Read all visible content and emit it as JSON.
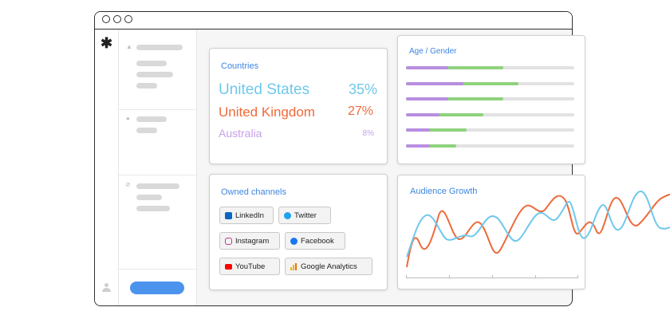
{
  "sidebar": {
    "logo": "✱"
  },
  "countries": {
    "title": "Countries",
    "rows": [
      {
        "name": "United States",
        "pct": "35%",
        "color": "#6fc8ec"
      },
      {
        "name": "United Kingdom",
        "pct": "27%",
        "color": "#ee6a3a"
      },
      {
        "name": "Australia",
        "pct": "8%",
        "color": "#c7a0ea"
      }
    ]
  },
  "age_gender": {
    "title": "Age / Gender",
    "bars": [
      {
        "female": 0.25,
        "male": 0.33
      },
      {
        "female": 0.34,
        "male": 0.33
      },
      {
        "female": 0.25,
        "male": 0.33
      },
      {
        "female": 0.2,
        "male": 0.26
      },
      {
        "female": 0.14,
        "male": 0.22
      },
      {
        "female": 0.14,
        "male": 0.16
      }
    ]
  },
  "owned_channels": {
    "title": "Owned channels",
    "chips": [
      {
        "label": "LinkedIn",
        "icon": "linkedin-icon",
        "color": "#0a66c2"
      },
      {
        "label": "Twitter",
        "icon": "twitter-icon",
        "color": "#1da1f2"
      },
      {
        "label": "Instagram",
        "icon": "instagram-icon",
        "color": "#c13584"
      },
      {
        "label": "Facebook",
        "icon": "facebook-icon",
        "color": "#1877f2"
      },
      {
        "label": "YouTube",
        "icon": "youtube-icon",
        "color": "#ff0000"
      },
      {
        "label": "Google Analytics",
        "icon": "google-analytics-icon",
        "color": "#f9ab00"
      }
    ]
  },
  "audience_growth": {
    "title": "Audience Growth"
  },
  "colors": {
    "accent": "#3e86e4",
    "button": "#4c93ee",
    "orange": "#ee6a3a",
    "blue": "#6fc8ec"
  }
}
